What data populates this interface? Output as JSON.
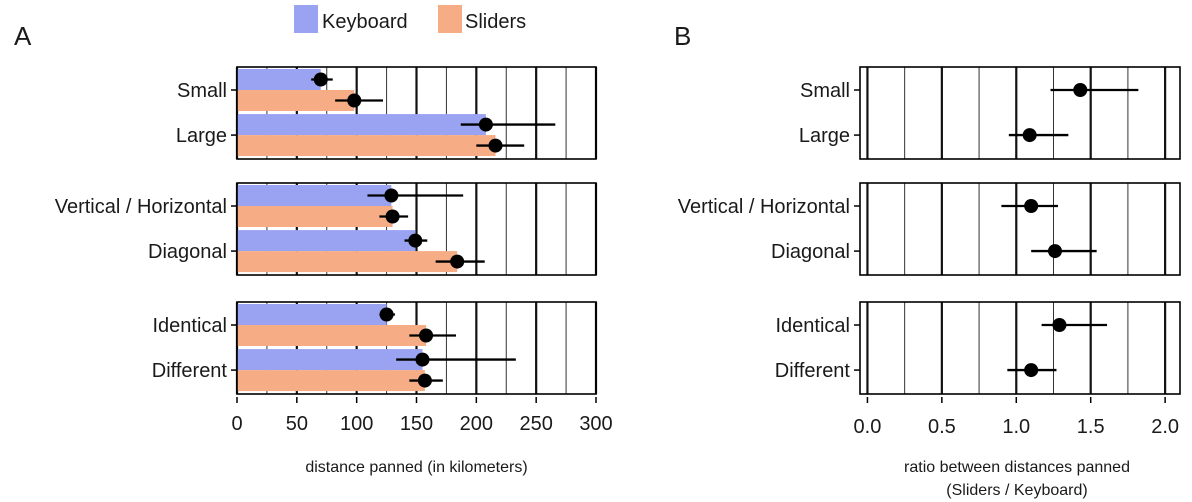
{
  "chart_data": [
    {
      "type": "bar",
      "panel_label": "A",
      "xlabel": "distance panned (in kilometers)",
      "xlim": [
        0,
        300
      ],
      "xticks": [
        "0",
        "50",
        "100",
        "150",
        "200",
        "250",
        "300"
      ],
      "grid": true,
      "legend": {
        "placement": "top",
        "entries": [
          {
            "name": "Keyboard",
            "color": "#9aa3f2"
          },
          {
            "name": "Sliders",
            "color": "#f6ad86"
          }
        ]
      },
      "groups": [
        {
          "categories": [
            {
              "label": "Small",
              "keyboard": {
                "value": 70,
                "lo": 62,
                "hi": 80
              },
              "sliders": {
                "value": 98,
                "lo": 82,
                "hi": 122
              }
            },
            {
              "label": "Large",
              "keyboard": {
                "value": 208,
                "lo": 187,
                "hi": 266
              },
              "sliders": {
                "value": 216,
                "lo": 200,
                "hi": 240
              }
            }
          ]
        },
        {
          "categories": [
            {
              "label": "Vertical / Horizontal",
              "keyboard": {
                "value": 129,
                "lo": 109,
                "hi": 189
              },
              "sliders": {
                "value": 130,
                "lo": 119,
                "hi": 143
              }
            },
            {
              "label": "Diagonal",
              "keyboard": {
                "value": 149,
                "lo": 140,
                "hi": 159
              },
              "sliders": {
                "value": 184,
                "lo": 166,
                "hi": 207
              }
            }
          ]
        },
        {
          "categories": [
            {
              "label": "Identical",
              "keyboard": {
                "value": 125,
                "lo": 119,
                "hi": 132
              },
              "sliders": {
                "value": 158,
                "lo": 144,
                "hi": 183
              }
            },
            {
              "label": "Different",
              "keyboard": {
                "value": 155,
                "lo": 133,
                "hi": 233
              },
              "sliders": {
                "value": 157,
                "lo": 144,
                "hi": 172
              }
            }
          ]
        }
      ]
    },
    {
      "type": "scatter",
      "panel_label": "B",
      "xlabel": "ratio between distances panned",
      "xlabel2": "(Sliders / Keyboard)",
      "xlim": [
        -0.05,
        2.1
      ],
      "xticks": [
        "0.0",
        "0.5",
        "1.0",
        "1.5",
        "2.0"
      ],
      "grid": true,
      "groups": [
        {
          "categories": [
            {
              "label": "Small",
              "value": 1.43,
              "lo": 1.23,
              "hi": 1.82
            },
            {
              "label": "Large",
              "value": 1.09,
              "lo": 0.95,
              "hi": 1.35
            }
          ]
        },
        {
          "categories": [
            {
              "label": "Vertical / Horizontal",
              "value": 1.1,
              "lo": 0.9,
              "hi": 1.28
            },
            {
              "label": "Diagonal",
              "value": 1.26,
              "lo": 1.1,
              "hi": 1.54
            }
          ]
        },
        {
          "categories": [
            {
              "label": "Identical",
              "value": 1.29,
              "lo": 1.17,
              "hi": 1.61
            },
            {
              "label": "Different",
              "value": 1.1,
              "lo": 0.94,
              "hi": 1.27
            }
          ]
        }
      ]
    }
  ]
}
